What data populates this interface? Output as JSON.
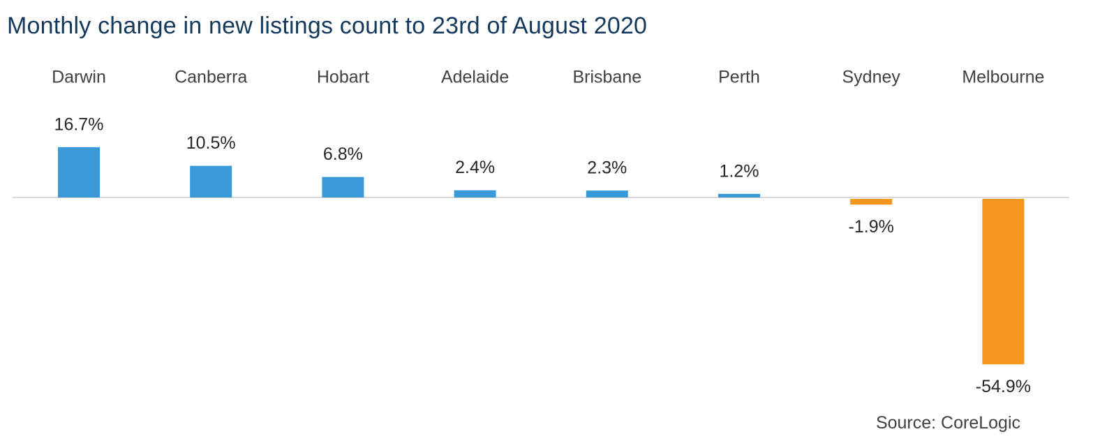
{
  "chart_data": {
    "type": "bar",
    "title": "Monthly change in new listings count to 23rd of August 2020",
    "categories": [
      "Darwin",
      "Canberra",
      "Hobart",
      "Adelaide",
      "Brisbane",
      "Perth",
      "Sydney",
      "Melbourne"
    ],
    "values": [
      16.7,
      10.5,
      6.8,
      2.4,
      2.3,
      1.2,
      -1.9,
      -54.9
    ],
    "value_labels": [
      "16.7%",
      "10.5%",
      "6.8%",
      "2.4%",
      "2.3%",
      "1.2%",
      "-1.9%",
      "-54.9%"
    ],
    "unit": "%",
    "ylim": [
      -54.9,
      16.7
    ],
    "grid": false,
    "legend": "none",
    "category_label_position": "top",
    "colors": {
      "positive": "#3a9ad9",
      "negative": "#f5961f",
      "axis": "#d9d9d9",
      "title": "#14385c"
    },
    "source": "Source: CoreLogic"
  }
}
